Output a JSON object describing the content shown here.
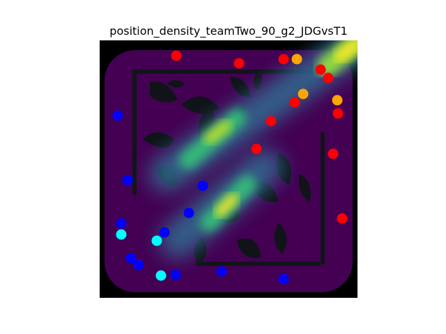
{
  "chart_data": {
    "type": "scatter",
    "title": "position_density_teamTwo_90_g2_JDGvsT1",
    "background": "position density heatmap over map",
    "colormap": [
      "#440154",
      "#3b528b",
      "#21918c",
      "#5ec962",
      "#fde725"
    ],
    "xlim": [
      0,
      370
    ],
    "ylim": [
      370,
      0
    ],
    "axes_visible": false,
    "series": [
      {
        "color": "#ff0000",
        "points": [
          {
            "x": 110,
            "y": 22
          },
          {
            "x": 200,
            "y": 33
          },
          {
            "x": 264,
            "y": 27
          },
          {
            "x": 317,
            "y": 42
          },
          {
            "x": 328,
            "y": 54
          },
          {
            "x": 280,
            "y": 89
          },
          {
            "x": 342,
            "y": 105
          },
          {
            "x": 246,
            "y": 116
          },
          {
            "x": 225,
            "y": 156
          },
          {
            "x": 335,
            "y": 163
          },
          {
            "x": 348,
            "y": 256
          }
        ]
      },
      {
        "color": "#ffa500",
        "points": [
          {
            "x": 283,
            "y": 27
          },
          {
            "x": 292,
            "y": 77
          },
          {
            "x": 341,
            "y": 86
          }
        ]
      },
      {
        "color": "#0000ff",
        "points": [
          {
            "x": 26,
            "y": 108
          },
          {
            "x": 40,
            "y": 201
          },
          {
            "x": 148,
            "y": 209
          },
          {
            "x": 128,
            "y": 248
          },
          {
            "x": 31,
            "y": 263
          },
          {
            "x": 93,
            "y": 276
          },
          {
            "x": 45,
            "y": 313
          },
          {
            "x": 56,
            "y": 323
          },
          {
            "x": 109,
            "y": 337
          },
          {
            "x": 175,
            "y": 332
          },
          {
            "x": 264,
            "y": 343
          }
        ]
      },
      {
        "color": "#00ffff",
        "points": [
          {
            "x": 31,
            "y": 279
          },
          {
            "x": 82,
            "y": 288
          },
          {
            "x": 88,
            "y": 338
          }
        ]
      }
    ]
  }
}
